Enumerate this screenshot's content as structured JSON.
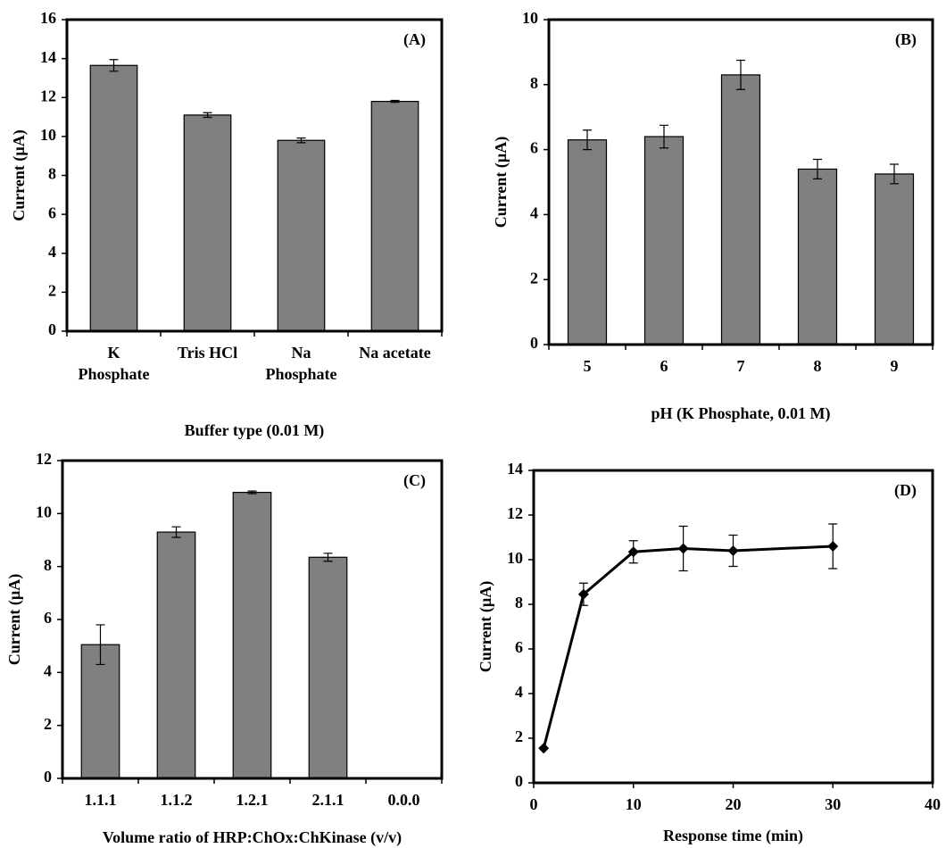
{
  "chart_data": [
    {
      "type": "bar",
      "annotation": "(A)",
      "x_label": "Buffer type (0.01 M)",
      "y_label": "Current  (µA)",
      "categories": [
        [
          "K",
          "Phosphate"
        ],
        [
          "Tris HCl"
        ],
        [
          "Na",
          "Phosphate"
        ],
        [
          "Na acetate"
        ]
      ],
      "values": [
        13.65,
        11.1,
        9.8,
        11.8
      ],
      "errors": [
        0.3,
        0.12,
        0.12,
        0.05
      ],
      "color": "#808080",
      "ylim": [
        0,
        16
      ],
      "yticks": [
        0,
        2,
        4,
        6,
        8,
        10,
        12,
        14,
        16
      ]
    },
    {
      "type": "bar",
      "annotation": "(B)",
      "x_label": "pH (K Phosphate, 0.01 M)",
      "y_label": "Current  (µA)",
      "categories": [
        [
          "5"
        ],
        [
          "6"
        ],
        [
          "7"
        ],
        [
          "8"
        ],
        [
          "9"
        ]
      ],
      "values": [
        6.3,
        6.4,
        8.3,
        5.4,
        5.25
      ],
      "errors": [
        0.3,
        0.35,
        0.45,
        0.3,
        0.3
      ],
      "color": "#808080",
      "ylim": [
        0,
        10
      ],
      "yticks": [
        0,
        2,
        4,
        6,
        8,
        10
      ]
    },
    {
      "type": "bar",
      "annotation": "(C)",
      "x_label": "Volume ratio of HRP:ChOx:ChKinase  (v/v)",
      "y_label": "Current  (µA)",
      "categories": [
        [
          "1.1.1"
        ],
        [
          "1.1.2"
        ],
        [
          "1.2.1"
        ],
        [
          "2.1.1"
        ],
        [
          "0.0.0"
        ]
      ],
      "values": [
        5.05,
        9.3,
        10.8,
        8.35,
        null
      ],
      "errors": [
        0.75,
        0.2,
        0.05,
        0.15,
        null
      ],
      "color": "#808080",
      "ylim": [
        0,
        12
      ],
      "yticks": [
        0,
        2,
        4,
        6,
        8,
        10,
        12
      ]
    },
    {
      "type": "line",
      "annotation": "(D)",
      "x_label": "Response time (min)",
      "y_label": "Current  (µA)",
      "x": [
        1,
        5,
        10,
        15,
        20,
        30
      ],
      "values": [
        1.55,
        8.45,
        10.35,
        10.5,
        10.4,
        10.6
      ],
      "errors": [
        0,
        0.5,
        0.5,
        1.0,
        0.7,
        1.0
      ],
      "color": "#000000",
      "xlim": [
        0,
        40
      ],
      "xticks": [
        0,
        10,
        20,
        30,
        40
      ],
      "ylim": [
        0,
        14
      ],
      "yticks": [
        0,
        2,
        4,
        6,
        8,
        10,
        12,
        14
      ]
    }
  ]
}
